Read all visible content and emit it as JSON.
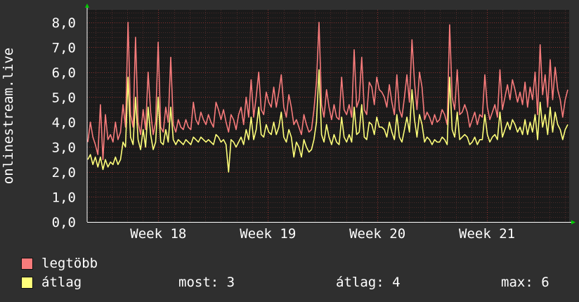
{
  "chart_data": {
    "type": "line",
    "ylabel": "onlinestream.live",
    "ylim": [
      0,
      8.5
    ],
    "yticks": [
      "0,0",
      "1,0",
      "2,0",
      "3,0",
      "4,0",
      "5,0",
      "6,0",
      "7,0",
      "8,0"
    ],
    "ytick_values": [
      0,
      1,
      2,
      3,
      4,
      5,
      6,
      7,
      8
    ],
    "x_labels": [
      "Week 18",
      "Week 19",
      "Week 20",
      "Week 21"
    ],
    "xlim": [
      17.35,
      21.75
    ],
    "x_label_values": [
      18,
      19,
      20,
      21
    ],
    "grid": true,
    "series": [
      {
        "name": "legtöbb",
        "color": "#f77b7b",
        "values": [
          3.2,
          4.0,
          3.4,
          3.1,
          2.7,
          4.7,
          2.5,
          4.3,
          3.3,
          3.5,
          3.2,
          4.0,
          3.3,
          3.6,
          4.7,
          3.8,
          8.0,
          4.3,
          3.8,
          7.4,
          4.0,
          3.5,
          4.5,
          3.7,
          6.0,
          4.4,
          3.5,
          4.0,
          7.2,
          3.8,
          3.6,
          4.6,
          4.0,
          6.6,
          3.9,
          3.6,
          4.1,
          3.8,
          3.7,
          4.1,
          3.8,
          3.7,
          4.8,
          4.1,
          3.9,
          4.4,
          4.1,
          3.9,
          4.3,
          4.0,
          3.8,
          4.8,
          4.5,
          4.1,
          4.5,
          4.0,
          3.6,
          4.3,
          4.1,
          3.7,
          4.3,
          4.6,
          3.9,
          5.0,
          4.2,
          5.7,
          4.2,
          5.0,
          6.0,
          4.5,
          4.3,
          5.2,
          4.8,
          4.6,
          5.4,
          4.6,
          5.2,
          5.9,
          4.6,
          4.2,
          5.1,
          4.6,
          3.9,
          4.1,
          3.8,
          3.5,
          4.3,
          3.9,
          3.6,
          3.7,
          4.5,
          5.6,
          8.0,
          4.7,
          4.2,
          5.3,
          4.6,
          4.1,
          4.7,
          4.2,
          4.1,
          5.8,
          4.5,
          4.3,
          4.7,
          4.2,
          6.9,
          4.6,
          4.9,
          6.6,
          4.5,
          4.3,
          5.6,
          5.4,
          4.7,
          5.8,
          5.3,
          5.2,
          5.0,
          4.6,
          5.5,
          4.8,
          4.3,
          5.9,
          4.5,
          4.2,
          5.0,
          5.9,
          4.8,
          7.3,
          5.6,
          4.5,
          6.0,
          5.4,
          4.1,
          4.4,
          4.2,
          3.9,
          4.3,
          4.0,
          4.1,
          4.5,
          4.3,
          3.9,
          7.9,
          5.0,
          4.5,
          6.1,
          4.3,
          4.4,
          4.7,
          4.4,
          3.8,
          4.1,
          4.4,
          3.9,
          4.3,
          4.2,
          5.9,
          4.6,
          4.1,
          4.4,
          4.7,
          4.2,
          6.1,
          4.5,
          5.0,
          5.5,
          4.9,
          5.7,
          5.3,
          4.8,
          5.2,
          4.7,
          5.6,
          4.6,
          5.4,
          4.9,
          6.0,
          4.3,
          7.1,
          5.1,
          5.9,
          4.6,
          6.5,
          4.9,
          6.2,
          5.3,
          4.9,
          4.2,
          4.9,
          5.3
        ],
        "values_2": []
      },
      {
        "name": "átlag",
        "color": "#ffff7a",
        "values": [
          2.5,
          2.7,
          2.3,
          2.6,
          2.2,
          2.6,
          2.1,
          2.5,
          2.2,
          2.4,
          2.3,
          2.6,
          2.3,
          2.5,
          3.2,
          3.0,
          5.8,
          3.4,
          3.1,
          5.0,
          3.3,
          2.9,
          3.7,
          3.0,
          4.6,
          3.5,
          2.9,
          3.2,
          5.0,
          3.2,
          3.1,
          3.7,
          3.2,
          4.6,
          3.3,
          3.1,
          3.3,
          3.2,
          3.1,
          3.3,
          3.2,
          3.1,
          3.4,
          3.3,
          3.2,
          3.4,
          3.3,
          3.2,
          3.3,
          3.2,
          3.1,
          3.5,
          3.4,
          3.2,
          3.3,
          3.1,
          2.0,
          3.3,
          3.2,
          3.0,
          3.2,
          3.4,
          3.1,
          3.7,
          3.3,
          4.2,
          3.3,
          3.7,
          4.6,
          3.5,
          3.4,
          3.9,
          3.6,
          3.5,
          4.0,
          3.5,
          3.8,
          4.4,
          3.4,
          3.2,
          3.7,
          3.4,
          2.6,
          3.2,
          3.0,
          2.6,
          3.3,
          3.0,
          2.8,
          2.9,
          3.3,
          4.0,
          6.1,
          3.5,
          3.2,
          3.9,
          3.4,
          3.1,
          3.5,
          3.2,
          3.1,
          4.2,
          3.4,
          3.2,
          3.5,
          3.2,
          4.6,
          3.5,
          3.6,
          4.7,
          3.4,
          3.3,
          4.0,
          3.9,
          3.5,
          4.2,
          3.8,
          3.8,
          3.7,
          3.4,
          4.0,
          3.6,
          3.3,
          4.3,
          3.4,
          3.2,
          3.7,
          4.2,
          3.6,
          5.3,
          4.1,
          3.4,
          4.3,
          3.9,
          3.2,
          3.4,
          3.3,
          3.1,
          3.3,
          3.2,
          3.2,
          3.4,
          3.3,
          3.1,
          5.8,
          3.7,
          3.4,
          4.4,
          3.3,
          3.4,
          3.5,
          3.4,
          3.1,
          3.2,
          3.4,
          3.1,
          3.3,
          3.3,
          4.3,
          3.5,
          3.2,
          3.4,
          3.5,
          3.3,
          4.4,
          3.4,
          3.7,
          4.0,
          3.7,
          4.1,
          3.9,
          3.6,
          3.8,
          3.5,
          4.1,
          3.5,
          4.0,
          3.6,
          4.3,
          3.3,
          4.8,
          3.8,
          4.3,
          3.5,
          4.6,
          3.6,
          4.4,
          3.9,
          3.7,
          3.3,
          3.7,
          3.9
        ]
      }
    ]
  },
  "legend": {
    "max_label": "legtöbb",
    "avg_label": "átlag",
    "stats": {
      "now": "most: 3",
      "avg": "átlag: 4",
      "max": "max: 6"
    }
  },
  "colors": {
    "background": "#2f2f2f",
    "plot_background": "#1a1a1a",
    "grid_minor": "#4a2a2a",
    "grid_major": "#8a3030",
    "axis": "#ffffff",
    "arrow": "#00cc00"
  }
}
